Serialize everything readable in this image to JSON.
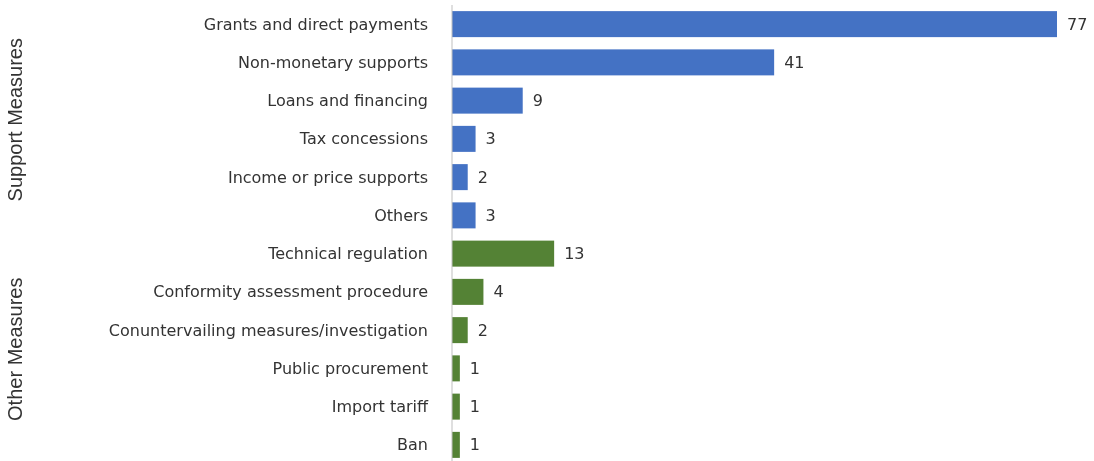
{
  "chart_data": {
    "type": "bar",
    "orientation": "horizontal",
    "data_labels": true,
    "categories": [
      "Grants and direct payments",
      "Non-monetary supports",
      "Loans and financing",
      "Tax concessions",
      "Income or price supports",
      "Others",
      "Technical regulation",
      "Conformity assessment procedure",
      "Conuntervailing measures/investigation",
      "Public procurement",
      "Import tariff",
      "Ban"
    ],
    "values": [
      77,
      41,
      9,
      3,
      2,
      3,
      13,
      4,
      2,
      1,
      1,
      1
    ],
    "colors": [
      "#4472c4",
      "#4472c4",
      "#4472c4",
      "#4472c4",
      "#4472c4",
      "#4472c4",
      "#548235",
      "#548235",
      "#548235",
      "#548235",
      "#548235",
      "#548235"
    ],
    "annotations": [
      "Support Measures",
      "Other Measures"
    ]
  }
}
